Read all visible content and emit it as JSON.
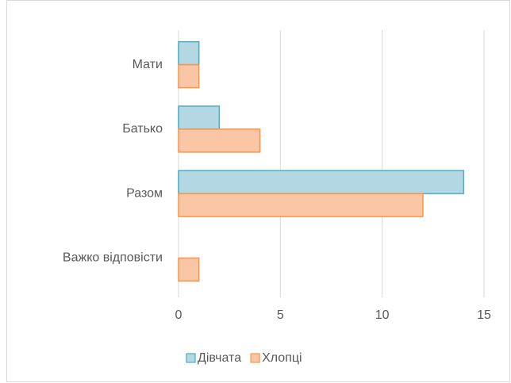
{
  "chart_data": {
    "type": "bar",
    "orientation": "horizontal",
    "categories": [
      "Мати",
      "Батько",
      "Разом",
      "Важко відповісти"
    ],
    "series": [
      {
        "name": "Дівчата",
        "color": "#4bacc6",
        "fill": "#b3d7e3",
        "values": [
          1,
          2,
          14,
          0
        ]
      },
      {
        "name": "Хлопці",
        "color": "#f79646",
        "fill": "#fbc6a6",
        "values": [
          1,
          4,
          12,
          1
        ]
      }
    ],
    "xlim": [
      0,
      15
    ],
    "xticks": [
      0,
      5,
      10,
      15
    ],
    "grid": true,
    "legend": "bottom"
  }
}
